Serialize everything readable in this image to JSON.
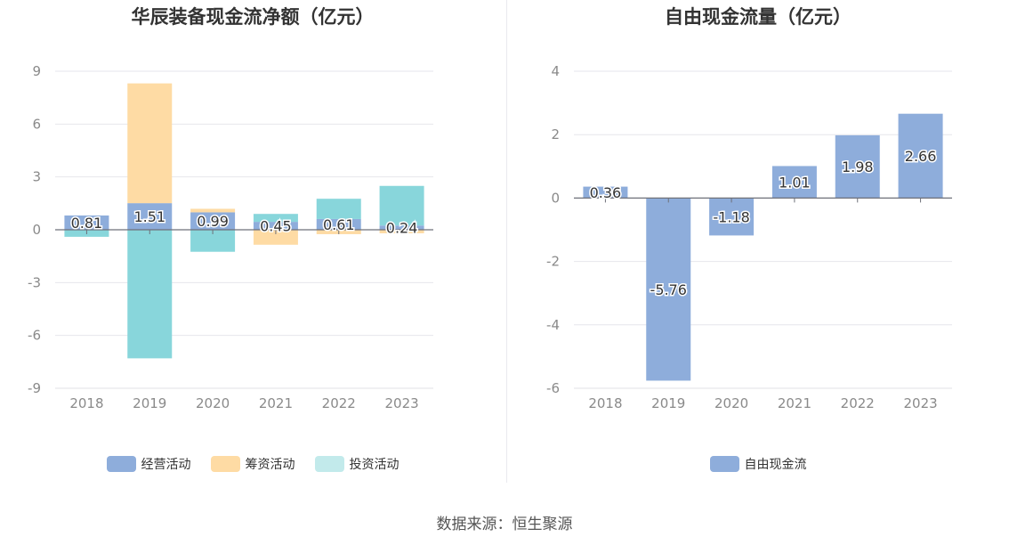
{
  "footer": {
    "source_text": "数据来源：恒生聚源"
  },
  "charts": [
    {
      "title": "华辰装备现金流净额（亿元）",
      "legend": [
        {
          "name": "经营活动",
          "color": "#8eaddb"
        },
        {
          "name": "筹资活动",
          "color": "#fedba4"
        },
        {
          "name": "投资活动",
          "color": "#c2eaeb"
        }
      ]
    },
    {
      "title": "自由现金流量（亿元）",
      "legend": [
        {
          "name": "自由现金流",
          "color": "#8eaddb"
        }
      ]
    }
  ],
  "chart_data": [
    {
      "type": "bar",
      "stacked": true,
      "title": "华辰装备现金流净额（亿元）",
      "categories": [
        "2018",
        "2019",
        "2020",
        "2021",
        "2022",
        "2023"
      ],
      "ylim": [
        -9,
        9
      ],
      "yticks": [
        9,
        6,
        3,
        0,
        -3,
        -6,
        -9
      ],
      "grid": true,
      "legend_position": "bottom",
      "series": [
        {
          "name": "经营活动",
          "color": "#8eaddb",
          "values": [
            0.81,
            1.51,
            0.99,
            0.45,
            0.61,
            0.24
          ],
          "labels": [
            "0.81",
            "1.51",
            "0.99",
            "0.45",
            "0.61",
            "0.24"
          ]
        },
        {
          "name": "筹资活动",
          "color": "#fedba4",
          "values": [
            0,
            6.8,
            0.2,
            -0.85,
            -0.25,
            -0.2
          ]
        },
        {
          "name": "投资活动",
          "color": "#88d6db",
          "values": [
            -0.4,
            -7.3,
            -1.25,
            0.45,
            1.15,
            2.25
          ]
        }
      ]
    },
    {
      "type": "bar",
      "title": "自由现金流量（亿元）",
      "categories": [
        "2018",
        "2019",
        "2020",
        "2021",
        "2022",
        "2023"
      ],
      "ylim": [
        -6,
        4
      ],
      "yticks": [
        4,
        2,
        0,
        -2,
        -4,
        -6
      ],
      "grid": true,
      "legend_position": "bottom",
      "series": [
        {
          "name": "自由现金流",
          "color": "#8eaddb",
          "values": [
            0.36,
            -5.76,
            -1.18,
            1.01,
            1.98,
            2.66
          ],
          "labels": [
            "0.36",
            "-5.76",
            "-1.18",
            "1.01",
            "1.98",
            "2.66"
          ]
        }
      ]
    }
  ]
}
